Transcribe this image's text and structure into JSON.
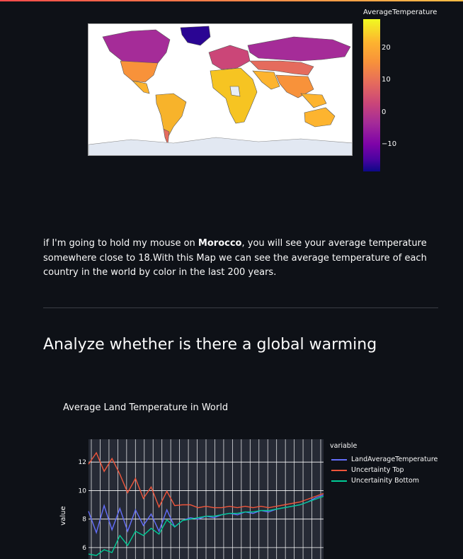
{
  "map": {
    "colorbar_title": "AverageTemperature",
    "colorbar_ticks": [
      "20",
      "10",
      "0",
      "−10"
    ],
    "scale_colors": [
      "#f0f921",
      "#fdb42f",
      "#e56b5d",
      "#cb4678",
      "#7e03a8",
      "#0d0887"
    ]
  },
  "text": {
    "para_prefix": "if I'm going to hold my mouse on ",
    "para_bold": "Morocco",
    "para_suffix": ", you will see your average temperature somewhere close to 18.With this Map we can see the average temperature of each country in the world by color in the last 200 years."
  },
  "heading": "Analyze whether is there a global warming",
  "chart_data": {
    "type": "line",
    "title": "Average Land Temperature in World",
    "ylabel": "value",
    "ylim": [
      5.2,
      13.6
    ],
    "yticks": [
      "6",
      "8",
      "10",
      "12"
    ],
    "legend_title": "variable",
    "legend_placement": "right",
    "grid": true,
    "series": [
      {
        "name": "LandAverageTemperature",
        "color": "#636efa",
        "values": [
          8.2,
          7.4,
          8.6,
          7.6,
          8.4,
          7.5,
          8.3,
          7.9,
          8.0,
          7.5,
          8.3,
          7.8,
          7.9,
          8.1,
          8.0,
          8.2,
          8.1,
          8.3,
          8.4,
          8.3,
          8.5,
          8.4,
          8.6,
          8.5,
          8.7,
          8.8,
          8.9,
          9.0,
          9.2,
          9.5,
          9.7
        ]
      },
      {
        "name": "Uncertainty Top",
        "color": "#ef553b",
        "values": [
          11.5,
          13.0,
          11.0,
          12.6,
          10.8,
          10.2,
          10.5,
          9.8,
          9.9,
          9.2,
          9.6,
          9.3,
          9.0,
          9.0,
          8.8,
          8.9,
          8.8,
          8.8,
          8.9,
          8.8,
          8.9,
          8.8,
          8.9,
          8.8,
          8.9,
          9.0,
          9.1,
          9.2,
          9.4,
          9.6,
          9.8
        ]
      },
      {
        "name": "Uncertainity Bottom",
        "color": "#00cc96",
        "values": [
          5.2,
          5.8,
          5.5,
          6.0,
          6.5,
          6.5,
          6.8,
          7.2,
          7.0,
          7.3,
          7.6,
          7.8,
          7.9,
          8.0,
          8.1,
          8.2,
          8.2,
          8.3,
          8.4,
          8.4,
          8.5,
          8.5,
          8.6,
          8.6,
          8.7,
          8.8,
          8.9,
          9.0,
          9.2,
          9.4,
          9.6
        ]
      }
    ]
  }
}
